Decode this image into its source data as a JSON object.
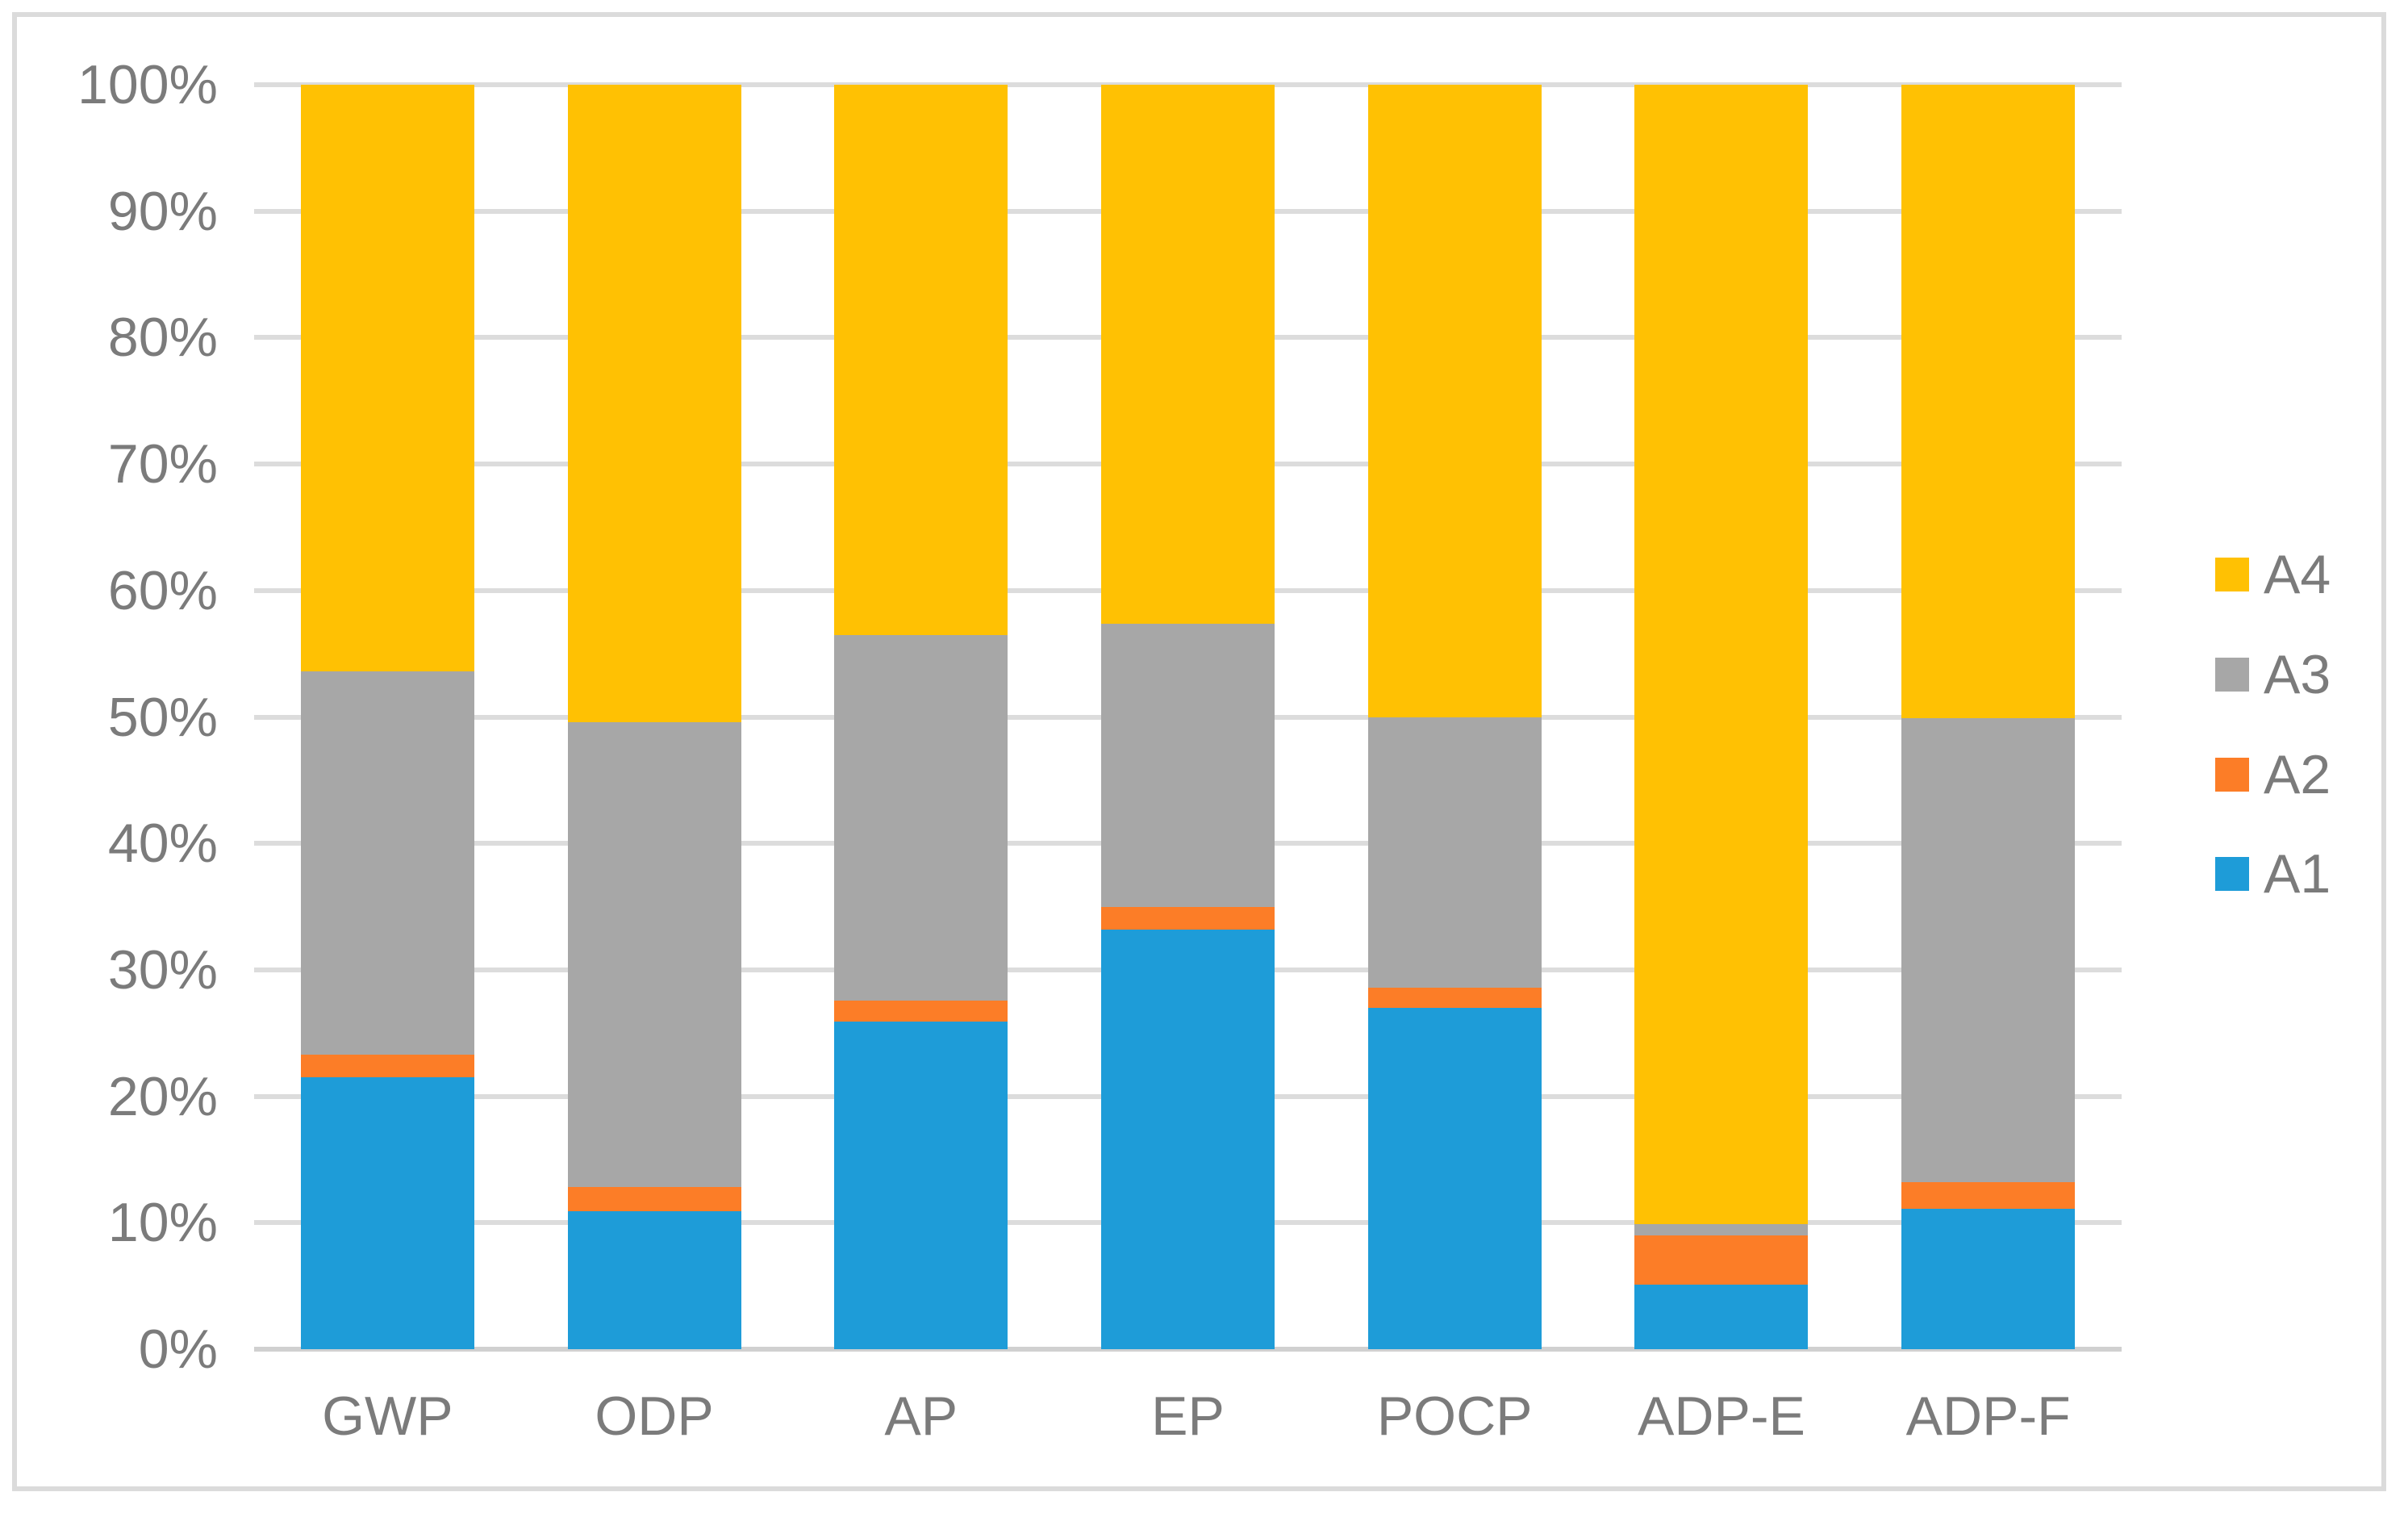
{
  "figure": {
    "background_color": "#FFFFFF",
    "border_color": "#DBDBDB",
    "text_color": "#7B7B7B",
    "gridline_color": "#DCDCDC",
    "axis_line_color": "#D0D0D0"
  },
  "chart_data": {
    "type": "bar",
    "subtype": "stacked-100-percent-column",
    "title": "",
    "xlabel": "",
    "ylabel": "",
    "grid": true,
    "ylim": [
      0,
      100
    ],
    "ytick_step": 10,
    "yticks": [
      "0%",
      "10%",
      "20%",
      "30%",
      "40%",
      "50%",
      "60%",
      "70%",
      "80%",
      "90%",
      "100%"
    ],
    "categories": [
      "GWP",
      "ODP",
      "AP",
      "EP",
      "POCP",
      "ADP-E",
      "ADP-F"
    ],
    "series": [
      {
        "name": "A1",
        "color": "#1E9CD8",
        "values": [
          21.5,
          10.9,
          25.9,
          33.2,
          27.0,
          5.1,
          11.1
        ]
      },
      {
        "name": "A2",
        "color": "#FC7D27",
        "values": [
          1.8,
          1.9,
          1.7,
          1.8,
          1.6,
          3.9,
          2.1
        ]
      },
      {
        "name": "A3",
        "color": "#A7A7A7",
        "values": [
          30.3,
          36.8,
          28.9,
          22.4,
          21.4,
          0.9,
          36.7
        ]
      },
      {
        "name": "A4",
        "color": "#FFC103",
        "values": [
          46.4,
          50.4,
          43.5,
          42.6,
          50.0,
          90.1,
          50.1
        ]
      }
    ],
    "legend_position": "right",
    "legend_order": [
      "A4",
      "A3",
      "A2",
      "A1"
    ]
  }
}
